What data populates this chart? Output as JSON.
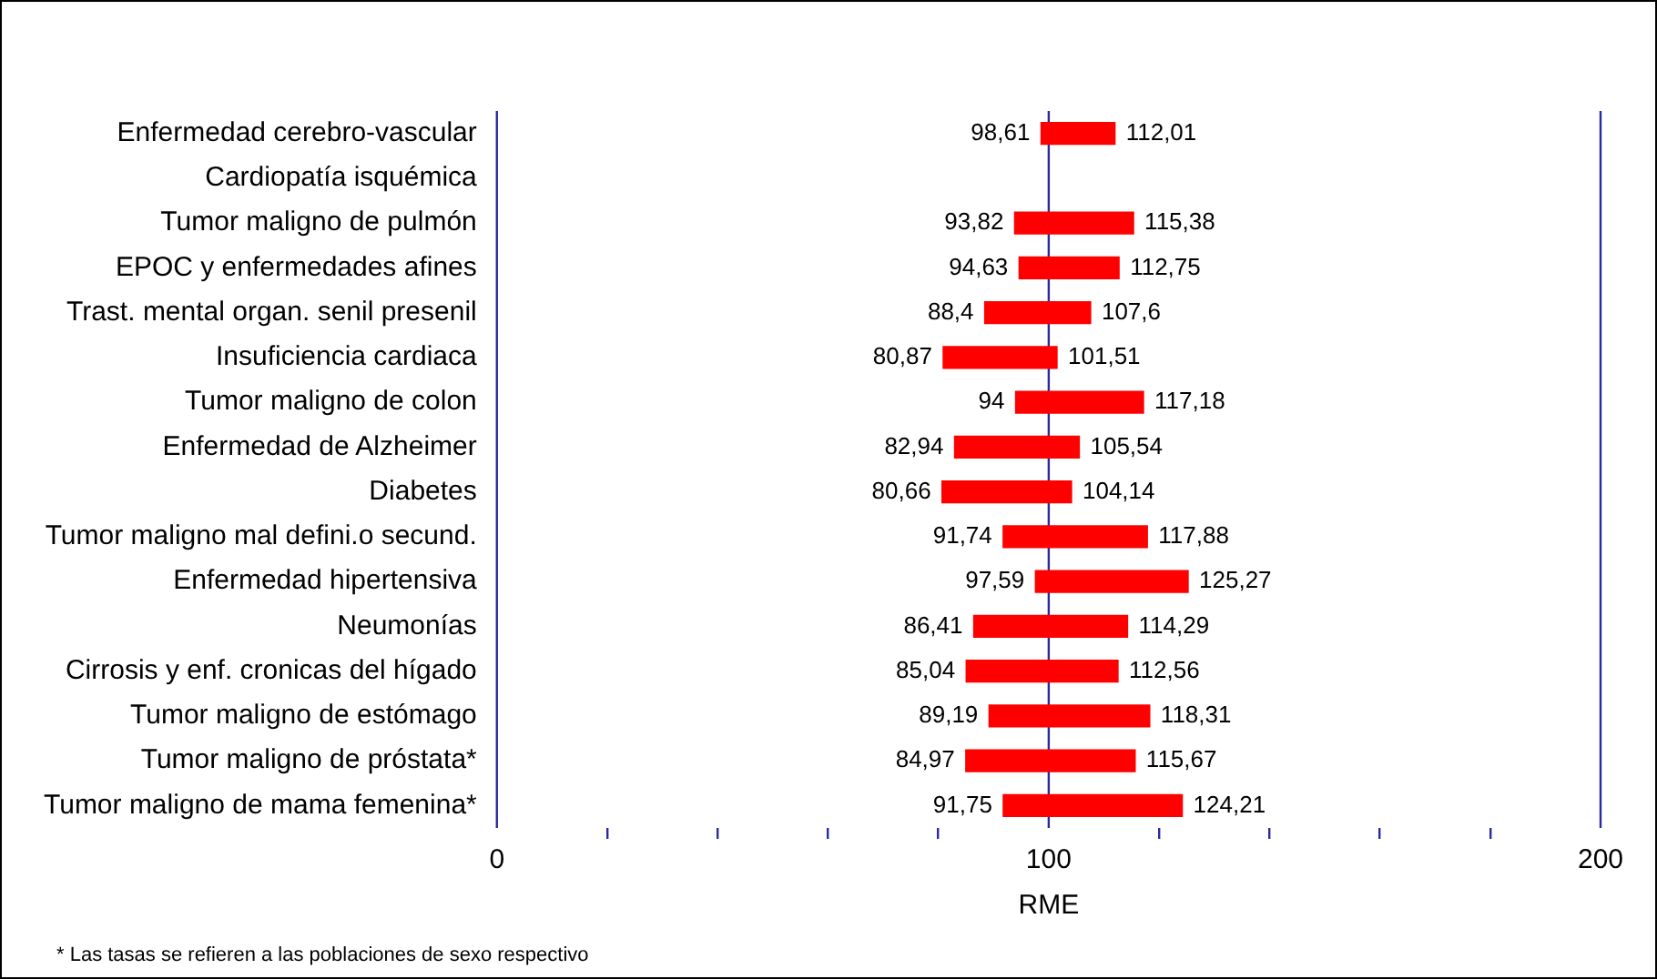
{
  "chart_data": {
    "type": "bar",
    "orientation": "horizontal",
    "xlabel": "RME",
    "categories": [
      "Enfermedad cerebro-vascular",
      "Cardiopatía isquémica",
      "Tumor maligno de pulmón",
      "EPOC y enfermedades afines",
      "Trast. mental organ. senil presenil",
      "Insuficiencia cardiaca",
      "Tumor maligno de colon",
      "Enfermedad de Alzheimer",
      "Diabetes",
      "Tumor maligno mal defini.o secund.",
      "Enfermedad hipertensiva",
      "Neumonías",
      "Cirrosis y enf. cronicas del hígado",
      "Tumor maligno de estómago",
      "Tumor maligno de próstata*",
      "Tumor maligno de mama femenina*"
    ],
    "base": [
      98.61,
      null,
      93.82,
      94.63,
      88.4,
      80.87,
      94,
      82.94,
      80.66,
      91.74,
      97.59,
      86.41,
      85.04,
      89.19,
      84.97,
      91.75
    ],
    "values": [
      13.4,
      null,
      21.56,
      18.12,
      19.2,
      20.64,
      23.18,
      22.6,
      23.48,
      26.14,
      27.68,
      27.88,
      27.52,
      29.12,
      30.7,
      32.46
    ],
    "color": "#ff0000",
    "xlim": [
      0,
      200
    ],
    "xticks": [
      0,
      {
        "value": 20,
        "label": null
      },
      {
        "value": 40,
        "label": null
      },
      {
        "value": 60,
        "label": null
      },
      {
        "value": 80,
        "label": null
      },
      100,
      {
        "value": 120,
        "label": null
      },
      {
        "value": 140,
        "label": null
      },
      {
        "value": 160,
        "label": null
      },
      {
        "value": 180,
        "label": null
      },
      200
    ],
    "ref_lines": [
      {
        "axis": "x",
        "value": 100,
        "color": "#2a2aa0"
      }
    ],
    "annotations": [
      {
        "text": "98,61",
        "x": 98.61,
        "y": "Enfermedad cerebro-vascular"
      },
      {
        "text": "112,01",
        "x": 112.01,
        "y": "Enfermedad cerebro-vascular"
      },
      {
        "text": "93,82",
        "x": 93.82,
        "y": "Tumor maligno de pulmón"
      },
      {
        "text": "115,38",
        "x": 115.38,
        "y": "Tumor maligno de pulmón"
      },
      {
        "text": "94,63",
        "x": 94.63,
        "y": "EPOC y enfermedades afines"
      },
      {
        "text": "112,75",
        "x": 112.75,
        "y": "EPOC y enfermedades afines"
      },
      {
        "text": "88,4",
        "x": 88.4,
        "y": "Trast. mental organ. senil presenil"
      },
      {
        "text": "107,6",
        "x": 107.6,
        "y": "Trast. mental organ. senil presenil"
      },
      {
        "text": "80,87",
        "x": 80.87,
        "y": "Insuficiencia cardiaca"
      },
      {
        "text": "101,51",
        "x": 101.51,
        "y": "Insuficiencia cardiaca"
      },
      {
        "text": "94",
        "x": 94,
        "y": "Tumor maligno de colon"
      },
      {
        "text": "117,18",
        "x": 117.18,
        "y": "Tumor maligno de colon"
      },
      {
        "text": "82,94",
        "x": 82.94,
        "y": "Enfermedad de Alzheimer"
      },
      {
        "text": "105,54",
        "x": 105.54,
        "y": "Enfermedad de Alzheimer"
      },
      {
        "text": "80,66",
        "x": 80.66,
        "y": "Diabetes"
      },
      {
        "text": "104,14",
        "x": 104.14,
        "y": "Diabetes"
      },
      {
        "text": "91,74",
        "x": 91.74,
        "y": "Tumor maligno mal defini.o secund."
      },
      {
        "text": "117,88",
        "x": 117.88,
        "y": "Tumor maligno mal defini.o secund."
      },
      {
        "text": "97,59",
        "x": 97.59,
        "y": "Enfermedad hipertensiva"
      },
      {
        "text": "125,27",
        "x": 125.27,
        "y": "Enfermedad hipertensiva"
      },
      {
        "text": "86,41",
        "x": 86.41,
        "y": "Neumonías"
      },
      {
        "text": "114,29",
        "x": 114.29,
        "y": "Neumonías"
      },
      {
        "text": "85,04",
        "x": 85.04,
        "y": "Cirrosis y enf. cronicas del hígado"
      },
      {
        "text": "112,56",
        "x": 112.56,
        "y": "Cirrosis y enf. cronicas del hígado"
      },
      {
        "text": "89,19",
        "x": 89.19,
        "y": "Tumor maligno de estómago"
      },
      {
        "text": "118,31",
        "x": 118.31,
        "y": "Tumor maligno de estómago"
      },
      {
        "text": "84,97",
        "x": 84.97,
        "y": "Tumor maligno de próstata*"
      },
      {
        "text": "115,67",
        "x": 115.67,
        "y": "Tumor maligno de próstata*"
      },
      {
        "text": "91,75",
        "x": 91.75,
        "y": "Tumor maligno de mama femenina*"
      },
      {
        "text": "124,21",
        "x": 124.21,
        "y": "Tumor maligno de mama femenina*"
      },
      "* Las tasas se refieren a las poblaciones de sexo respectivo"
    ]
  }
}
